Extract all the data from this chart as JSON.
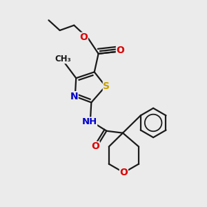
{
  "bg_color": "#ebebeb",
  "bond_color": "#1a1a1a",
  "bond_width": 1.6,
  "atom_colors": {
    "S": "#c8a000",
    "N": "#0000cc",
    "O": "#dd0000",
    "C": "#1a1a1a",
    "H": "#00aaaa"
  },
  "font_size": 9.5
}
